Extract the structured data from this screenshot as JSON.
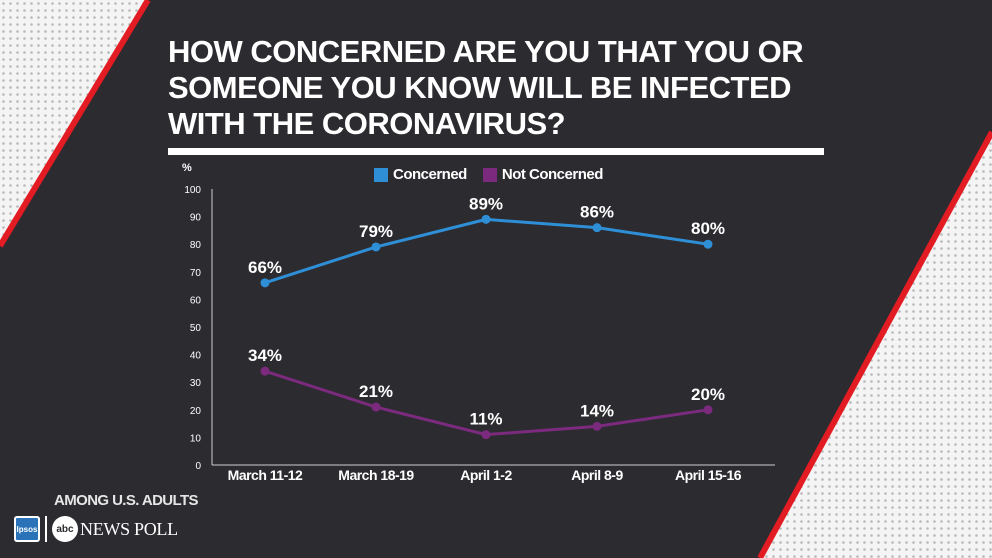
{
  "title_lines": [
    "HOW CONCERNED ARE YOU THAT YOU OR",
    "SOMEONE YOU KNOW WILL BE INFECTED",
    "WITH THE CORONAVIRUS?"
  ],
  "footer": {
    "note": "AMONG U.S. ADULTS",
    "ipsos_logo_text": "Ipsos",
    "abc_logo_text": "abc",
    "poll_label": "NEWS POLL"
  },
  "colors": {
    "background_dark": "#2b2b30",
    "stripe_red": "#e31b23",
    "concerned": "#2f8fd6",
    "not_concerned": "#7b2a7e"
  },
  "chart_data": {
    "type": "line",
    "title": "HOW CONCERNED ARE YOU THAT YOU OR SOMEONE YOU KNOW WILL BE INFECTED WITH THE CORONAVIRUS?",
    "ylabel": "%",
    "xlabel": "",
    "ylim": [
      0,
      100
    ],
    "yticks": [
      0,
      10,
      20,
      30,
      40,
      50,
      60,
      70,
      80,
      90,
      100
    ],
    "categories": [
      "March 11-12",
      "March 18-19",
      "April 1-2",
      "April 8-9",
      "April 15-16"
    ],
    "series": [
      {
        "name": "Concerned",
        "color": "#2f8fd6",
        "values": [
          66,
          79,
          89,
          86,
          80
        ],
        "labels": [
          "66%",
          "79%",
          "89%",
          "86%",
          "80%"
        ]
      },
      {
        "name": "Not Concerned",
        "color": "#7b2a7e",
        "values": [
          34,
          21,
          11,
          14,
          20
        ],
        "labels": [
          "34%",
          "21%",
          "11%",
          "14%",
          "20%"
        ]
      }
    ],
    "legend": "top-center",
    "grid": false
  }
}
